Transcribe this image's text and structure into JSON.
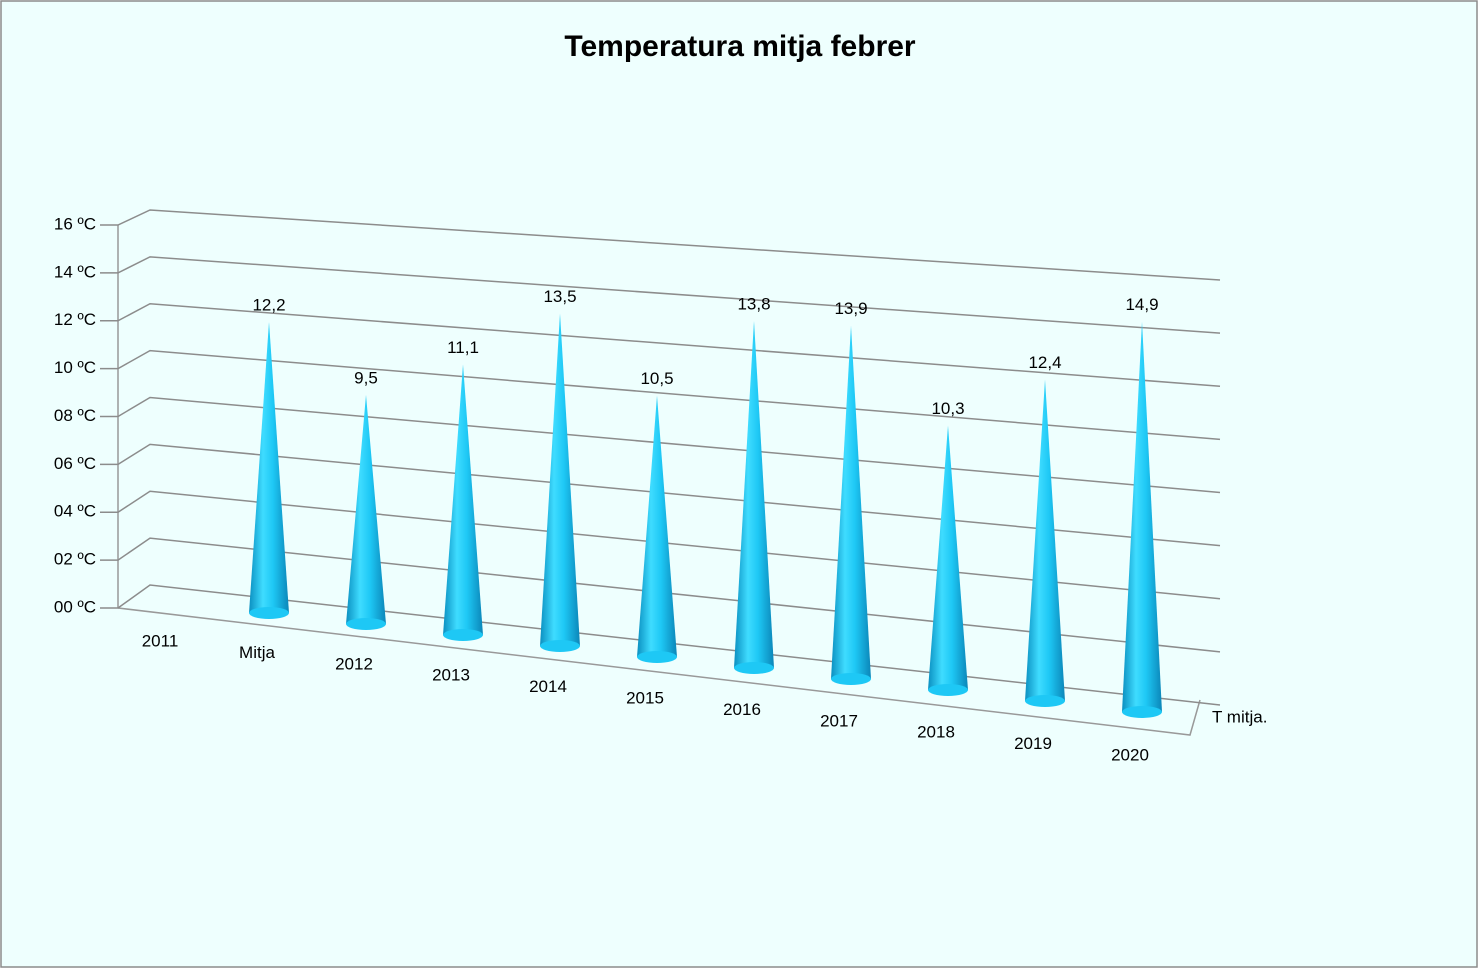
{
  "chart_data": {
    "type": "cone3d",
    "title": "Temperatura mitja febrer",
    "categories": [
      "2011",
      "Mitja",
      "2012",
      "2013",
      "2014",
      "2015",
      "2016",
      "2017",
      "2018",
      "2019",
      "2020"
    ],
    "series": [
      {
        "name": "T mitja.",
        "color": "#1ec8f5",
        "values": [
          null,
          12.2,
          9.5,
          11.1,
          13.5,
          10.5,
          13.8,
          13.9,
          10.3,
          12.4,
          14.9
        ],
        "value_labels": [
          null,
          "12,2",
          "9,5",
          "11,1",
          "13,5",
          "10,5",
          "13,8",
          "13,9",
          "10,3",
          "12,4",
          "14,9"
        ]
      }
    ],
    "ylim": [
      0,
      16
    ],
    "yticks": [
      {
        "value": 0,
        "label": "00 ºC"
      },
      {
        "value": 2,
        "label": "02 ºC"
      },
      {
        "value": 4,
        "label": "04 ºC"
      },
      {
        "value": 6,
        "label": "06 ºC"
      },
      {
        "value": 8,
        "label": "08 ºC"
      },
      {
        "value": 10,
        "label": "10 ºC"
      },
      {
        "value": 12,
        "label": "12 ºC"
      },
      {
        "value": 14,
        "label": "14 ºC"
      },
      {
        "value": 16,
        "label": "16 ºC"
      }
    ],
    "grid": true
  }
}
